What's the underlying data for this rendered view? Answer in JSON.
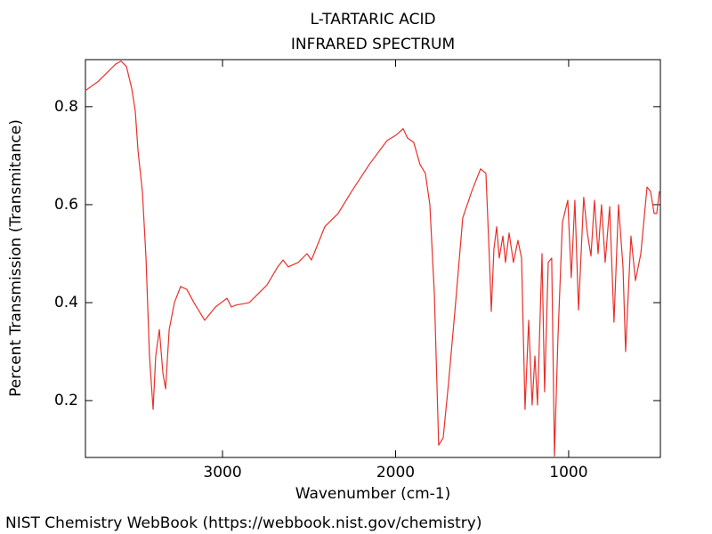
{
  "chart_data": {
    "type": "line",
    "title": "L-TARTARIC ACID",
    "subtitle": "INFRARED SPECTRUM",
    "x_label": "Wavenumber (cm-1)",
    "y_label": "Percent Transmission (Transmitance)",
    "source": "NIST Chemistry WebBook (https://webbook.nist.gov/chemistry)",
    "xlim": [
      3792,
      470
    ],
    "ylim": [
      0.084,
      0.896
    ],
    "xticks": [
      3000,
      2000,
      1000
    ],
    "yticks": [
      0.2,
      0.4,
      0.6,
      0.8
    ],
    "series": [
      {
        "color": "#e8302a",
        "x": [
          3792,
          3720,
          3617,
          3586,
          3555,
          3524,
          3504,
          3488,
          3463,
          3442,
          3422,
          3401,
          3386,
          3365,
          3344,
          3329,
          3308,
          3278,
          3242,
          3206,
          3165,
          3103,
          3041,
          2974,
          2949,
          2923,
          2846,
          2743,
          2681,
          2650,
          2620,
          2563,
          2512,
          2486,
          2409,
          2332,
          2254,
          2152,
          2049,
          1997,
          1956,
          1931,
          1895,
          1859,
          1828,
          1802,
          1776,
          1751,
          1725,
          1694,
          1653,
          1612,
          1560,
          1509,
          1478,
          1458,
          1447,
          1432,
          1416,
          1401,
          1380,
          1365,
          1344,
          1319,
          1293,
          1272,
          1252,
          1231,
          1211,
          1195,
          1180,
          1154,
          1139,
          1118,
          1098,
          1082,
          1062,
          1036,
          1005,
          985,
          964,
          943,
          913,
          892,
          871,
          851,
          830,
          810,
          789,
          763,
          738,
          712,
          686,
          671,
          640,
          614,
          583,
          547,
          527,
          506,
          491,
          476
        ],
        "values": [
          0.833,
          0.851,
          0.887,
          0.893,
          0.882,
          0.836,
          0.791,
          0.709,
          0.627,
          0.491,
          0.291,
          0.182,
          0.291,
          0.345,
          0.255,
          0.224,
          0.345,
          0.4,
          0.433,
          0.427,
          0.4,
          0.364,
          0.391,
          0.409,
          0.391,
          0.395,
          0.4,
          0.436,
          0.473,
          0.487,
          0.473,
          0.482,
          0.5,
          0.487,
          0.555,
          0.582,
          0.627,
          0.682,
          0.731,
          0.742,
          0.755,
          0.736,
          0.727,
          0.682,
          0.664,
          0.6,
          0.418,
          0.109,
          0.124,
          0.236,
          0.4,
          0.573,
          0.627,
          0.673,
          0.664,
          0.491,
          0.382,
          0.509,
          0.555,
          0.491,
          0.536,
          0.482,
          0.542,
          0.482,
          0.527,
          0.491,
          0.182,
          0.364,
          0.191,
          0.291,
          0.191,
          0.5,
          0.218,
          0.482,
          0.491,
          0.087,
          0.327,
          0.564,
          0.609,
          0.451,
          0.609,
          0.385,
          0.615,
          0.542,
          0.495,
          0.609,
          0.5,
          0.6,
          0.482,
          0.596,
          0.36,
          0.6,
          0.473,
          0.3,
          0.536,
          0.445,
          0.5,
          0.636,
          0.627,
          0.582,
          0.582,
          0.627
        ]
      }
    ]
  }
}
